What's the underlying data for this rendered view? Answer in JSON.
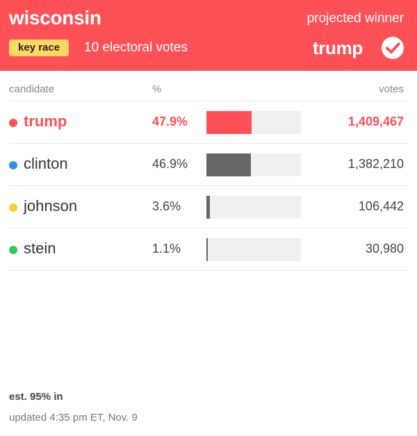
{
  "header": {
    "state": "wisconsin",
    "projected_label": "projected winner",
    "key_race_label": "key race",
    "electoral_votes": "10 electoral votes",
    "winner": "trump",
    "check_icon": "check-circle-icon"
  },
  "columns": {
    "candidate": "candidate",
    "percent": "%",
    "votes": "votes"
  },
  "candidates": [
    {
      "name": "trump",
      "pct": "47.9%",
      "share": 0.479,
      "votes": "1,409,467",
      "dot_color": "#fe5157",
      "leader": true
    },
    {
      "name": "clinton",
      "pct": "46.9%",
      "share": 0.469,
      "votes": "1,382,210",
      "dot_color": "#2d8fe6",
      "leader": false
    },
    {
      "name": "johnson",
      "pct": "3.6%",
      "share": 0.036,
      "votes": "106,442",
      "dot_color": "#ffcc33",
      "leader": false
    },
    {
      "name": "stein",
      "pct": "1.1%",
      "share": 0.011,
      "votes": "30,980",
      "dot_color": "#34c759",
      "leader": false
    }
  ],
  "footer": {
    "est_in": "est. 95% in",
    "updated": "updated 4:35 pm ET, Nov. 9"
  },
  "colors": {
    "accent": "#fe5157",
    "key_race_badge": "#ffd863",
    "bar": "#676767",
    "bar_track": "#f0f0f0"
  }
}
